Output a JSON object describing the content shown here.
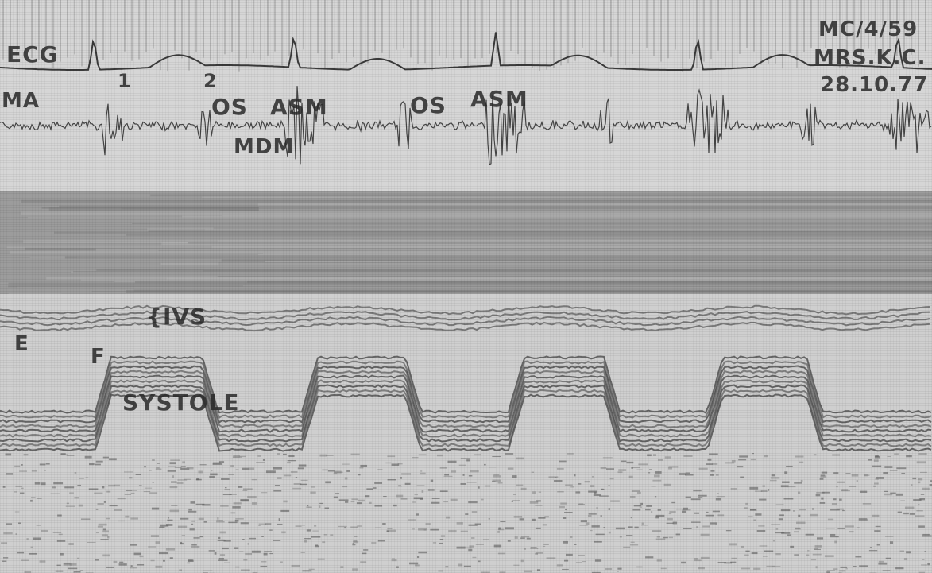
{
  "recording": {
    "ecg_label": "ECG",
    "ma_label": "MA",
    "sound_1": "1",
    "sound_2": "2",
    "os_label_1": "OS",
    "asm_label_1": "ASM",
    "mdm_label": "MDM",
    "os_label_2": "OS",
    "asm_label_2": "ASM",
    "ivs_label": "IVS",
    "e_label": "E",
    "f_label": "F",
    "systole_label": "SYSTOLE"
  },
  "patient": {
    "id": "MC/4/59",
    "name": "MRS.K.C.",
    "date": "28.10.77"
  },
  "colors": {
    "trace": "#3a3a3a",
    "paper": "#d6d6d6",
    "echo_dark": "#5a5a5a"
  }
}
